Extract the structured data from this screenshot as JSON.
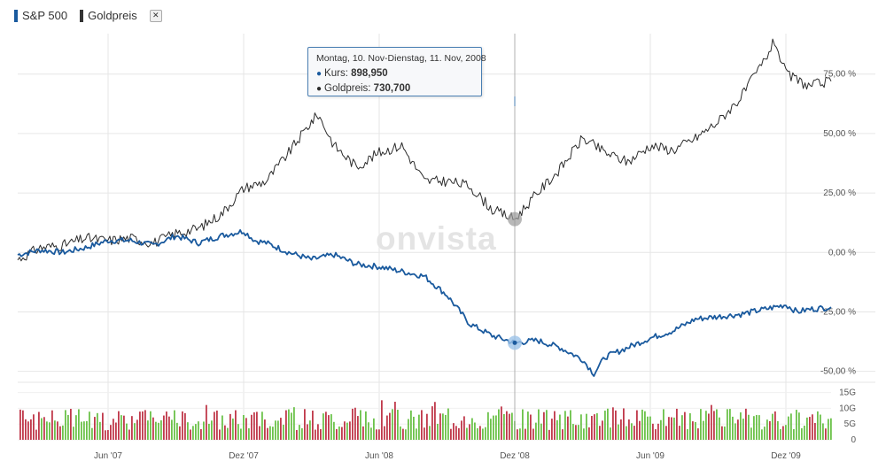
{
  "legend": {
    "series1": "S&P 500",
    "series2": "Goldpreis",
    "close_symbol": "✕"
  },
  "watermark": "onvista",
  "tooltip": {
    "header": "Montag, 10. Nov-Dienstag, 11. Nov, 2008",
    "row1_label": "Kurs:",
    "row1_value": "898,950",
    "row2_label": "Goldpreis:",
    "row2_value": "730,700"
  },
  "colors": {
    "sp500": "#1a5a9e",
    "gold": "#2b2b2b",
    "volume_up": "#6cc24a",
    "volume_down": "#c0394b",
    "grid": "#e6e6e6",
    "tooltip_border": "#4a7fb3"
  },
  "chart_data": {
    "type": "line",
    "x_ticks": [
      "Jun '07",
      "Dez '07",
      "Jun '08",
      "Dez '08",
      "Jun '09",
      "Dez '09"
    ],
    "y_ticks": [
      "75,00 %",
      "50,00 %",
      "25,00 %",
      "0,00 %",
      "-25,00 %",
      "-50,00 %"
    ],
    "y_tick_values": [
      75,
      50,
      25,
      0,
      -25,
      -50
    ],
    "ylim": [
      -52,
      92
    ],
    "volume_ticks": [
      "15G",
      "10G",
      "5G",
      "0"
    ],
    "volume_tick_values": [
      15,
      10,
      5,
      0
    ],
    "volume_ylim": [
      0,
      16
    ],
    "x_range_months": [
      0,
      36
    ],
    "x_tick_months": [
      4,
      10,
      16,
      22,
      28,
      34
    ],
    "series": [
      {
        "name": "S&P 500",
        "points": [
          [
            0,
            -1
          ],
          [
            1,
            1
          ],
          [
            2,
            0
          ],
          [
            3,
            2
          ],
          [
            4,
            5
          ],
          [
            5,
            5
          ],
          [
            6,
            3
          ],
          [
            7,
            7
          ],
          [
            8,
            4
          ],
          [
            9,
            7
          ],
          [
            10,
            9
          ],
          [
            10.5,
            5
          ],
          [
            11,
            4
          ],
          [
            12,
            0
          ],
          [
            13,
            -3
          ],
          [
            14,
            -1
          ],
          [
            15,
            -5
          ],
          [
            16,
            -6
          ],
          [
            17,
            -8
          ],
          [
            18,
            -10
          ],
          [
            19,
            -18
          ],
          [
            20,
            -30
          ],
          [
            21,
            -35
          ],
          [
            22,
            -38
          ],
          [
            23,
            -37
          ],
          [
            24,
            -40
          ],
          [
            25,
            -45
          ],
          [
            25.5,
            -51
          ],
          [
            26,
            -44
          ],
          [
            27,
            -40
          ],
          [
            28,
            -36
          ],
          [
            29,
            -33
          ],
          [
            30,
            -28
          ],
          [
            31,
            -27
          ],
          [
            32,
            -26
          ],
          [
            33,
            -24
          ],
          [
            34,
            -22
          ],
          [
            34.5,
            -25
          ],
          [
            35,
            -24
          ],
          [
            36,
            -23
          ]
        ]
      },
      {
        "name": "Goldpreis",
        "points": [
          [
            0,
            -3
          ],
          [
            1,
            2
          ],
          [
            2,
            3
          ],
          [
            3,
            6
          ],
          [
            4,
            5
          ],
          [
            5,
            6
          ],
          [
            6,
            4
          ],
          [
            7,
            8
          ],
          [
            8,
            10
          ],
          [
            9,
            16
          ],
          [
            10,
            27
          ],
          [
            11,
            30
          ],
          [
            12,
            42
          ],
          [
            13,
            55
          ],
          [
            13.3,
            58
          ],
          [
            14,
            45
          ],
          [
            15,
            36
          ],
          [
            16,
            42
          ],
          [
            17,
            45
          ],
          [
            18,
            30
          ],
          [
            19,
            30
          ],
          [
            20,
            28
          ],
          [
            21,
            18
          ],
          [
            22,
            14
          ],
          [
            23,
            25
          ],
          [
            24,
            35
          ],
          [
            25,
            48
          ],
          [
            26,
            42
          ],
          [
            27,
            38
          ],
          [
            28,
            45
          ],
          [
            29,
            43
          ],
          [
            30,
            48
          ],
          [
            31,
            55
          ],
          [
            32,
            65
          ],
          [
            33,
            80
          ],
          [
            33.5,
            89
          ],
          [
            34,
            75
          ],
          [
            35,
            70
          ],
          [
            36,
            72
          ]
        ]
      }
    ],
    "volume_seed": 17,
    "tooltip_x_month": 22
  }
}
